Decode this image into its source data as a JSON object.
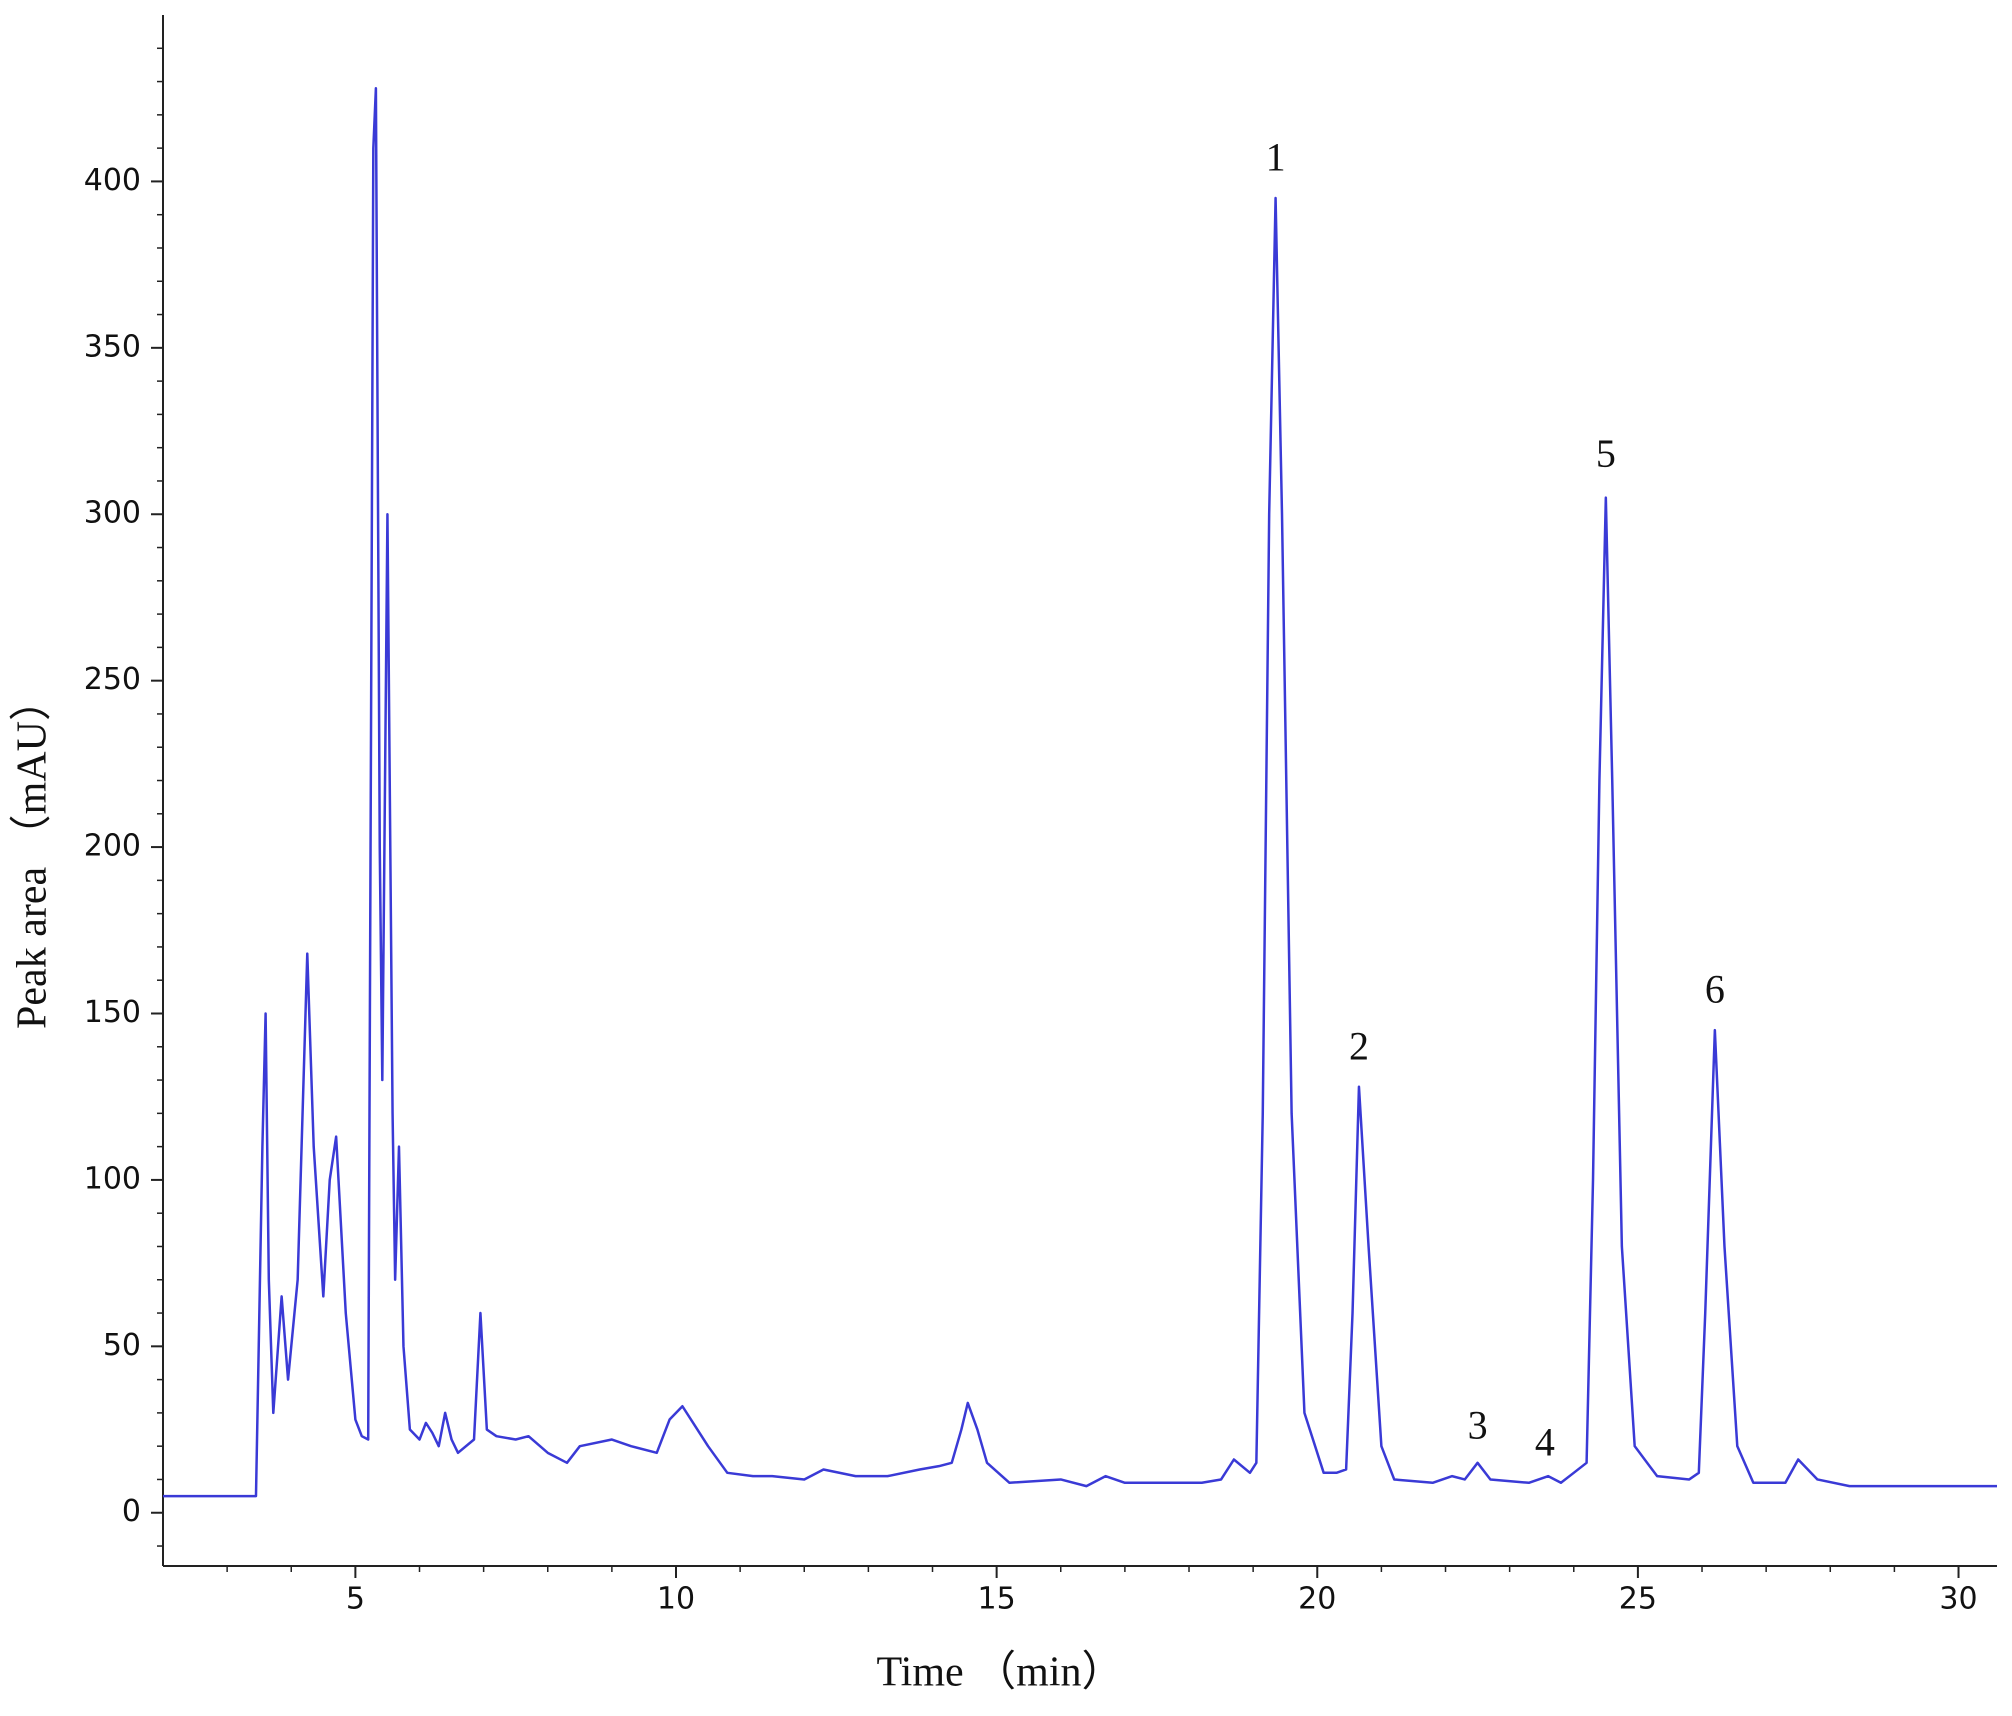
{
  "chart_data": {
    "type": "line",
    "xlabel": "Time （min）",
    "ylabel": "Peak area （mAU）",
    "color": "#3a3ad6",
    "xlim": [
      2,
      30.6
    ],
    "ylim": [
      -16,
      450
    ],
    "xticks": [
      5,
      10,
      15,
      20,
      25,
      30
    ],
    "yticks": [
      0,
      50,
      100,
      150,
      200,
      250,
      300,
      350,
      400
    ],
    "xminorticks": [
      3,
      4,
      6,
      7,
      8,
      9,
      11,
      12,
      13,
      14,
      16,
      17,
      18,
      19,
      21,
      22,
      23,
      24,
      26,
      27,
      28,
      29
    ],
    "yminorticks": [
      -10,
      10,
      20,
      30,
      40,
      60,
      70,
      80,
      90,
      110,
      120,
      130,
      140,
      160,
      170,
      180,
      190,
      210,
      220,
      230,
      240,
      260,
      270,
      280,
      290,
      310,
      320,
      330,
      340,
      360,
      370,
      380,
      390,
      410,
      420,
      430,
      440
    ],
    "x": [
      2,
      3.45,
      3.55,
      3.6,
      3.65,
      3.72,
      3.85,
      3.95,
      4.1,
      4.25,
      4.35,
      4.5,
      4.6,
      4.7,
      4.85,
      5.0,
      5.1,
      5.2,
      5.28,
      5.32,
      5.38,
      5.42,
      5.5,
      5.58,
      5.62,
      5.68,
      5.75,
      5.85,
      6.0,
      6.1,
      6.2,
      6.3,
      6.4,
      6.5,
      6.6,
      6.85,
      6.95,
      7.05,
      7.2,
      7.5,
      7.7,
      8.0,
      8.3,
      8.5,
      9.0,
      9.3,
      9.7,
      9.9,
      10.1,
      10.3,
      10.5,
      10.8,
      11.2,
      11.5,
      12.0,
      12.3,
      12.8,
      13.3,
      13.8,
      14.1,
      14.3,
      14.45,
      14.55,
      14.7,
      14.85,
      15.2,
      16.0,
      16.4,
      16.7,
      17.0,
      18.2,
      18.5,
      18.7,
      18.95,
      19.05,
      19.15,
      19.25,
      19.35,
      19.45,
      19.6,
      19.8,
      20.1,
      20.3,
      20.45,
      20.55,
      20.65,
      20.8,
      21.0,
      21.2,
      21.8,
      22.1,
      22.3,
      22.5,
      22.7,
      23.3,
      23.6,
      23.8,
      24.0,
      24.2,
      24.3,
      24.4,
      24.5,
      24.6,
      24.75,
      24.95,
      25.3,
      25.8,
      25.95,
      26.05,
      26.2,
      26.35,
      26.55,
      26.8,
      27.3,
      27.5,
      27.8,
      28.3,
      29.0,
      30.0,
      30.6
    ],
    "values": [
      5,
      5,
      110,
      150,
      70,
      30,
      65,
      40,
      70,
      168,
      110,
      65,
      100,
      113,
      60,
      28,
      23,
      22,
      410,
      428,
      200,
      130,
      300,
      120,
      70,
      110,
      50,
      25,
      22,
      27,
      24,
      20,
      30,
      22,
      18,
      22,
      60,
      25,
      23,
      22,
      23,
      18,
      15,
      20,
      22,
      20,
      18,
      28,
      32,
      26,
      20,
      12,
      11,
      11,
      10,
      13,
      11,
      11,
      13,
      14,
      15,
      25,
      33,
      25,
      15,
      9,
      10,
      8,
      11,
      9,
      9,
      10,
      16,
      12,
      15,
      120,
      300,
      395,
      300,
      120,
      30,
      12,
      12,
      13,
      60,
      128,
      80,
      20,
      10,
      9,
      11,
      10,
      15,
      10,
      9,
      11,
      9,
      12,
      15,
      100,
      220,
      305,
      220,
      80,
      20,
      11,
      10,
      12,
      60,
      145,
      80,
      20,
      9,
      9,
      16,
      10,
      8,
      8,
      8,
      8
    ],
    "annotations": [
      {
        "text": "1",
        "x": 19.35,
        "y": 406
      },
      {
        "text": "2",
        "x": 20.65,
        "y": 139
      },
      {
        "text": "3",
        "x": 22.5,
        "y": 25
      },
      {
        "text": "4",
        "x": 23.55,
        "y": 20
      },
      {
        "text": "5",
        "x": 24.5,
        "y": 317
      },
      {
        "text": "6",
        "x": 26.2,
        "y": 156
      }
    ]
  }
}
